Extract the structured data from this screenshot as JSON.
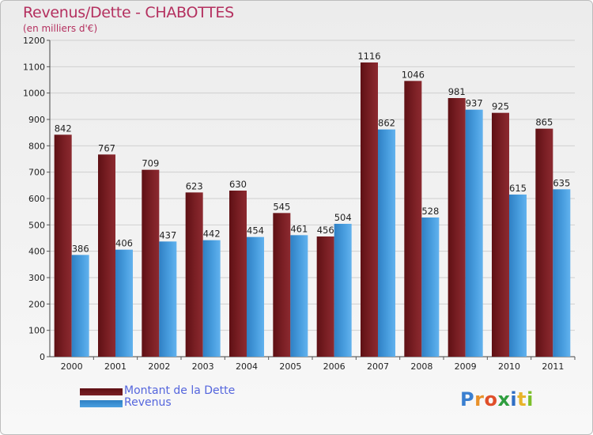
{
  "title": "Revenus/Dette - CHABOTTES",
  "subtitle": "(en milliers d'€)",
  "colors": {
    "debt": "#7a1f24",
    "revenue": "#4a9fe0",
    "title": "#b4305f",
    "legend_text": "#5566dd"
  },
  "chart_data": {
    "type": "bar",
    "categories": [
      "2000",
      "2001",
      "2002",
      "2003",
      "2004",
      "2005",
      "2006",
      "2007",
      "2008",
      "2009",
      "2010",
      "2011"
    ],
    "series": [
      {
        "name": "Montant de la Dette",
        "values": [
          842,
          767,
          709,
          623,
          630,
          545,
          456,
          1116,
          1046,
          981,
          925,
          865
        ]
      },
      {
        "name": "Revenus",
        "values": [
          386,
          406,
          437,
          442,
          454,
          461,
          504,
          862,
          528,
          937,
          615,
          635
        ]
      }
    ],
    "ylim": [
      0,
      1200
    ],
    "yticks": [
      0,
      100,
      200,
      300,
      400,
      500,
      600,
      700,
      800,
      900,
      1000,
      1100,
      1200
    ],
    "grid": true
  },
  "legend": {
    "debt_label": "Montant de la Dette",
    "revenue_label": "Revenus"
  },
  "logo": {
    "letters": [
      "P",
      "r",
      "o",
      "x",
      "i",
      "t",
      "i"
    ],
    "colors": [
      "#3a7fd0",
      "#e8912a",
      "#e04f2a",
      "#2f9e3f",
      "#2f6ec4",
      "#e8b42a",
      "#7bbf2a"
    ]
  }
}
